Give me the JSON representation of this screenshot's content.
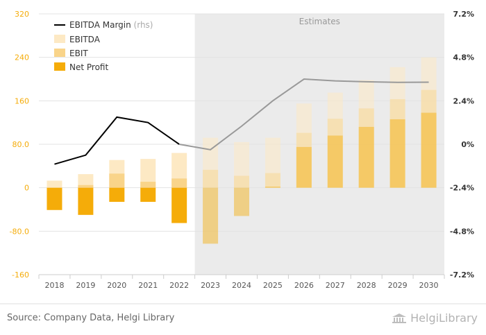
{
  "chart_data": {
    "type": "bar",
    "categories": [
      "2018",
      "2019",
      "2020",
      "2021",
      "2022",
      "2023",
      "2024",
      "2025",
      "2026",
      "2027",
      "2028",
      "2029",
      "2030"
    ],
    "estimates_from": "2023",
    "estimates_label": "Estimates",
    "series": [
      {
        "name": "EBITDA",
        "type": "bar",
        "color": "#fde9c4",
        "values": [
          13,
          25,
          51,
          53,
          64,
          92,
          84,
          92,
          155,
          175,
          198,
          222,
          240
        ]
      },
      {
        "name": "EBIT",
        "type": "bar",
        "color": "#f9d48a",
        "values": [
          0,
          5,
          26,
          11,
          17,
          33,
          22,
          27,
          101,
          127,
          146,
          163,
          180
        ]
      },
      {
        "name": "Net Profit",
        "type": "bar",
        "color": "#f5ac09",
        "values": [
          -41,
          -50,
          -26,
          -26,
          -65,
          -103,
          -52,
          2,
          75,
          96,
          112,
          126,
          138
        ]
      },
      {
        "name": "EBITDA Margin",
        "name_suffix": "(rhs)",
        "type": "line",
        "axis": "right",
        "color": "#000000",
        "values": [
          -1.1,
          -0.6,
          1.5,
          1.2,
          0.0,
          -0.3,
          1.0,
          2.4,
          3.6,
          3.5,
          3.45,
          3.42,
          3.43
        ]
      }
    ],
    "y_left": {
      "ticks": [
        "320",
        "240",
        "160",
        "80.0",
        "0",
        "-80.0",
        "-160"
      ],
      "ylim": [
        -160,
        320
      ]
    },
    "y_right": {
      "ticks": [
        "7.2%",
        "4.8%",
        "2.4%",
        "0%",
        "-2.4%",
        "-4.8%",
        "-7.2%"
      ],
      "ylim": [
        -7.2,
        7.2
      ]
    },
    "grid": true,
    "legend_position": "top-left"
  },
  "footer": {
    "source": "Source: Company Data, Helgi Library",
    "brand": "HelgiLibrary"
  }
}
